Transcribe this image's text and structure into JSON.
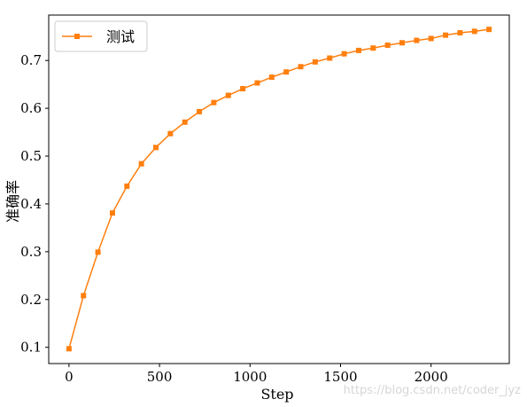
{
  "chart_data": {
    "type": "line",
    "xlabel": "Step",
    "ylabel": "准确率",
    "xlim": [
      -112,
      2432
    ],
    "ylim": [
      0.066,
      0.795
    ],
    "xticks": [
      0,
      500,
      1000,
      1500,
      2000
    ],
    "yticks": [
      0.1,
      0.2,
      0.3,
      0.4,
      0.5,
      0.6,
      0.7
    ],
    "grid": false,
    "legend_position": "top-left",
    "series": [
      {
        "name": "测试",
        "color": "#ff7f0e",
        "marker": "square",
        "x": [
          0,
          80,
          160,
          240,
          320,
          400,
          480,
          560,
          640,
          720,
          800,
          880,
          960,
          1040,
          1120,
          1200,
          1280,
          1360,
          1440,
          1520,
          1600,
          1680,
          1760,
          1840,
          1920,
          2000,
          2080,
          2160,
          2240,
          2320
        ],
        "y": [
          0.097,
          0.208,
          0.299,
          0.381,
          0.437,
          0.484,
          0.518,
          0.547,
          0.571,
          0.593,
          0.612,
          0.627,
          0.641,
          0.653,
          0.665,
          0.676,
          0.687,
          0.697,
          0.705,
          0.714,
          0.721,
          0.726,
          0.732,
          0.737,
          0.742,
          0.746,
          0.753,
          0.758,
          0.761,
          0.765
        ]
      }
    ]
  },
  "watermark": "https://blog.csdn.net/coder_jyz"
}
